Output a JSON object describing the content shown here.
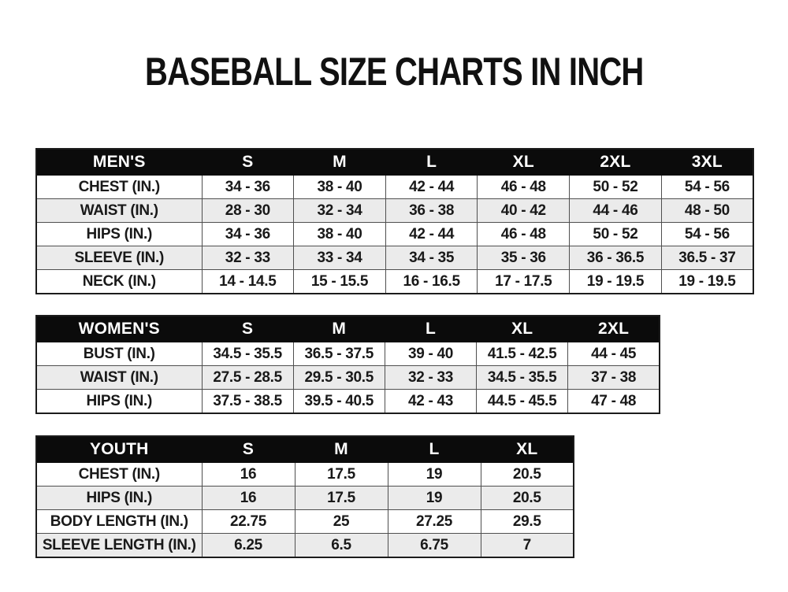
{
  "page": {
    "title": "BASEBALL SIZE CHARTS IN INCH"
  },
  "colors": {
    "background": "#ffffff",
    "table_header_bg": "#0b0b0b",
    "table_header_text": "#ffffff",
    "row_alt_bg": "#ebebeb",
    "body_text": "#191919",
    "grid_border": "#4f4f4f"
  },
  "tables": [
    {
      "id": "mens",
      "header_label": "MEN'S",
      "columns": [
        "S",
        "M",
        "L",
        "XL",
        "2XL",
        "3XL"
      ],
      "rows": [
        {
          "label": "CHEST (IN.)",
          "values": [
            "34 - 36",
            "38 - 40",
            "42 - 44",
            "46 - 48",
            "50 - 52",
            "54 - 56"
          ]
        },
        {
          "label": "WAIST (IN.)",
          "values": [
            "28 - 30",
            "32 - 34",
            "36 - 38",
            "40 - 42",
            "44 - 46",
            "48 - 50"
          ]
        },
        {
          "label": "HIPS (IN.)",
          "values": [
            "34 - 36",
            "38 - 40",
            "42 - 44",
            "46 - 48",
            "50 - 52",
            "54 - 56"
          ]
        },
        {
          "label": "SLEEVE (IN.)",
          "values": [
            "32 - 33",
            "33 - 34",
            "34 - 35",
            "35 - 36",
            "36 - 36.5",
            "36.5 - 37"
          ]
        },
        {
          "label": "NECK (IN.)",
          "values": [
            "14 - 14.5",
            "15 - 15.5",
            "16 - 16.5",
            "17 - 17.5",
            "19 - 19.5",
            "19 - 19.5"
          ]
        }
      ]
    },
    {
      "id": "womens",
      "header_label": "WOMEN'S",
      "columns": [
        "S",
        "M",
        "L",
        "XL",
        "2XL"
      ],
      "rows": [
        {
          "label": "BUST (IN.)",
          "values": [
            "34.5 - 35.5",
            "36.5 - 37.5",
            "39 - 40",
            "41.5 - 42.5",
            "44 - 45"
          ]
        },
        {
          "label": "WAIST (IN.)",
          "values": [
            "27.5 - 28.5",
            "29.5 - 30.5",
            "32 - 33",
            "34.5 - 35.5",
            "37 - 38"
          ]
        },
        {
          "label": "HIPS (IN.)",
          "values": [
            "37.5 - 38.5",
            "39.5 - 40.5",
            "42 - 43",
            "44.5 - 45.5",
            "47 - 48"
          ]
        }
      ]
    },
    {
      "id": "youth",
      "header_label": "YOUTH",
      "columns": [
        "S",
        "M",
        "L",
        "XL"
      ],
      "rows": [
        {
          "label": "CHEST (IN.)",
          "values": [
            "16",
            "17.5",
            "19",
            "20.5"
          ]
        },
        {
          "label": "HIPS (IN.)",
          "values": [
            "16",
            "17.5",
            "19",
            "20.5"
          ]
        },
        {
          "label": "BODY LENGTH (IN.)",
          "values": [
            "22.75",
            "25",
            "27.25",
            "29.5"
          ]
        },
        {
          "label": "SLEEVE LENGTH (IN.)",
          "values": [
            "6.25",
            "6.5",
            "6.75",
            "7"
          ]
        }
      ]
    }
  ]
}
